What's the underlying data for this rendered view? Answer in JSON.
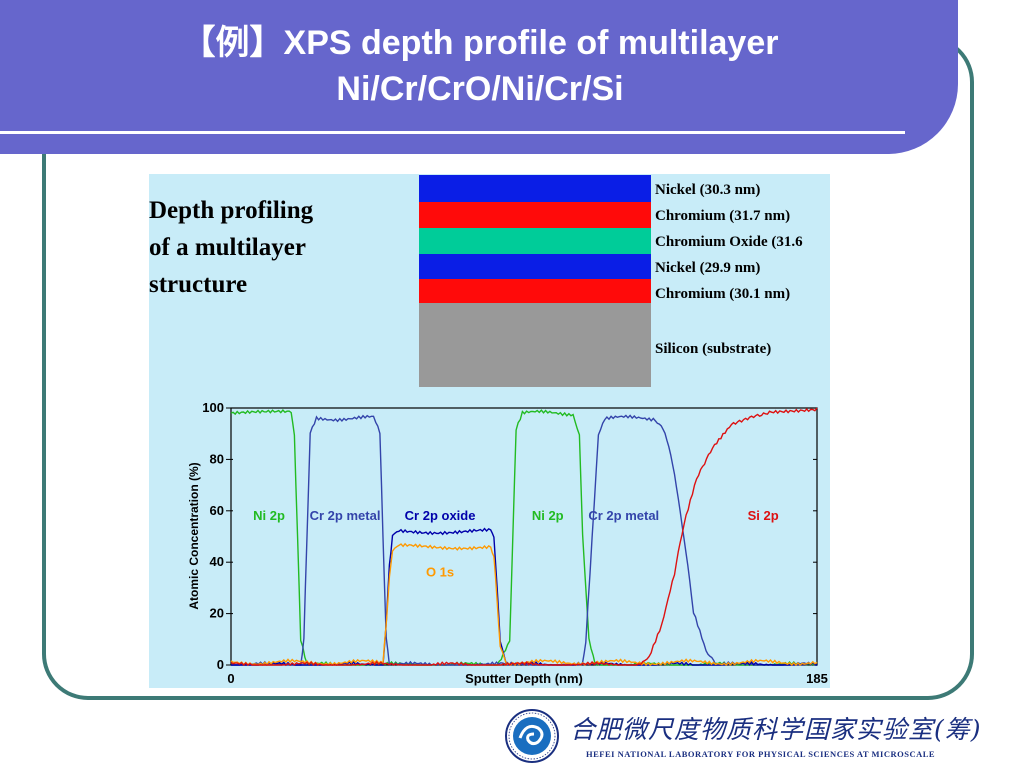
{
  "slide": {
    "title_line1": "【例】XPS depth profile of multilayer",
    "title_line2": "Ni/Cr/CrO/Ni/Cr/Si",
    "colors": {
      "title_bar": "#6666cc",
      "frame": "#3d7a76",
      "panel": "#c8ecf8"
    }
  },
  "figure": {
    "heading": [
      "Depth profiling",
      "of a multilayer",
      "structure"
    ],
    "layers": [
      {
        "label": "Nickel (30.3 nm)",
        "color": "#0a1ee6"
      },
      {
        "label": "Chromium (31.7 nm)",
        "color": "#ff0a0a"
      },
      {
        "label": "Chromium Oxide (31.6",
        "color": "#00cc99"
      },
      {
        "label": "Nickel (29.9 nm)",
        "color": "#0a1ee6"
      },
      {
        "label": "Chromium (30.1 nm)",
        "color": "#ff0a0a"
      },
      {
        "label": "Silicon (substrate)",
        "color": "#999999"
      }
    ]
  },
  "chart_data": {
    "type": "line",
    "xlabel": "Sputter Depth (nm)",
    "ylabel": "Atomic Concentration (%)",
    "xlim": [
      0,
      185
    ],
    "ylim": [
      0,
      100
    ],
    "x_tick_labels": [
      "0",
      "185"
    ],
    "y_ticks": [
      0,
      20,
      40,
      60,
      80,
      100
    ],
    "grid": false,
    "series": [
      {
        "name": "Ni 2p",
        "color": "#22bb22",
        "points": [
          [
            0,
            98
          ],
          [
            19,
            98
          ],
          [
            20,
            90
          ],
          [
            21,
            50
          ],
          [
            22,
            10
          ],
          [
            24,
            0
          ],
          [
            84,
            0
          ],
          [
            88,
            10
          ],
          [
            89,
            50
          ],
          [
            90,
            92
          ],
          [
            92,
            98
          ],
          [
            108,
            98
          ],
          [
            110,
            90
          ],
          [
            111,
            50
          ],
          [
            113,
            10
          ],
          [
            115,
            0
          ],
          [
            185,
            0
          ]
        ]
      },
      {
        "name": "Cr 2p metal",
        "color": "#3344aa",
        "points": [
          [
            0,
            0
          ],
          [
            22,
            0
          ],
          [
            23,
            10
          ],
          [
            24,
            50
          ],
          [
            25,
            90
          ],
          [
            27,
            96
          ],
          [
            45,
            96
          ],
          [
            47,
            90
          ],
          [
            48,
            50
          ],
          [
            49,
            10
          ],
          [
            50,
            0
          ],
          [
            111,
            0
          ],
          [
            112,
            10
          ],
          [
            114,
            50
          ],
          [
            116,
            90
          ],
          [
            118,
            96
          ],
          [
            134,
            96
          ],
          [
            137,
            90
          ],
          [
            140,
            75
          ],
          [
            143,
            50
          ],
          [
            146,
            20
          ],
          [
            150,
            5
          ],
          [
            153,
            0
          ],
          [
            185,
            0
          ]
        ]
      },
      {
        "name": "Cr 2p oxide",
        "color": "#0000aa",
        "points": [
          [
            0,
            0
          ],
          [
            48,
            0
          ],
          [
            49,
            15
          ],
          [
            50,
            40
          ],
          [
            51,
            50
          ],
          [
            53,
            52
          ],
          [
            82,
            52
          ],
          [
            83,
            50
          ],
          [
            84,
            30
          ],
          [
            85,
            10
          ],
          [
            87,
            0
          ],
          [
            185,
            0
          ]
        ]
      },
      {
        "name": "O 1s",
        "color": "#ff9900",
        "points": [
          [
            0,
            1
          ],
          [
            48,
            1
          ],
          [
            49,
            15
          ],
          [
            50,
            35
          ],
          [
            51,
            44
          ],
          [
            53,
            46
          ],
          [
            82,
            46
          ],
          [
            83,
            42
          ],
          [
            84,
            25
          ],
          [
            85,
            8
          ],
          [
            87,
            1
          ],
          [
            185,
            1
          ]
        ]
      },
      {
        "name": "Si 2p",
        "color": "#dd1111",
        "points": [
          [
            0,
            0
          ],
          [
            128,
            0
          ],
          [
            132,
            3
          ],
          [
            136,
            15
          ],
          [
            140,
            35
          ],
          [
            143,
            55
          ],
          [
            147,
            72
          ],
          [
            152,
            85
          ],
          [
            158,
            93
          ],
          [
            165,
            97
          ],
          [
            170,
            99
          ],
          [
            185,
            100
          ]
        ]
      }
    ],
    "annotations": [
      {
        "text": "Ni 2p",
        "x": 12,
        "y": 58,
        "color": "#22bb22"
      },
      {
        "text": "Cr 2p metal",
        "x": 36,
        "y": 58,
        "color": "#3344aa"
      },
      {
        "text": "Cr 2p oxide",
        "x": 66,
        "y": 58,
        "color": "#0000aa"
      },
      {
        "text": "Ni 2p",
        "x": 100,
        "y": 58,
        "color": "#22bb22"
      },
      {
        "text": "Cr 2p metal",
        "x": 124,
        "y": 58,
        "color": "#3344aa"
      },
      {
        "text": "Si 2p",
        "x": 168,
        "y": 58,
        "color": "#dd1111"
      },
      {
        "text": "O 1s",
        "x": 66,
        "y": 36,
        "color": "#ff9900"
      }
    ]
  },
  "logo": {
    "cn": "合肥微尺度物质科学国家实验室(筹)",
    "en": "HEFEI NATIONAL LABORATORY FOR PHYSICAL SCIENCES AT MICROSCALE"
  }
}
